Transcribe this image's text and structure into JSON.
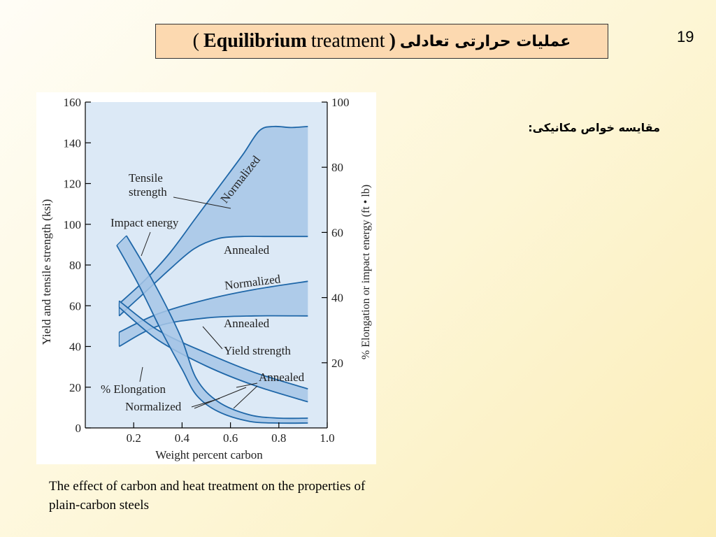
{
  "slide": {
    "title_open": "(",
    "title_bold": "Equilibrium",
    "title_rest": "treatment",
    "title_close": ")",
    "title_fa": "عملیات حرارتی تعادلی",
    "page_number": "19",
    "note_fa": "مقایسه خواص مکانیکی:",
    "caption": "The effect of carbon and heat treatment on the properties of plain-carbon steels"
  },
  "chart_data": {
    "type": "area",
    "xlabel": "Weight percent carbon",
    "ylabel_left": "Yield and tensile strength (ksi)",
    "ylabel_right": "% Elongation or impact energy (ft • lb)",
    "xlim": [
      0,
      1.0
    ],
    "ylim_left": [
      0,
      160
    ],
    "ylim_right": [
      0,
      100
    ],
    "xticks": [
      "0.2",
      "0.4",
      "0.6",
      "0.8",
      "1.0"
    ],
    "yticks_left": [
      "0",
      "20",
      "40",
      "60",
      "80",
      "100",
      "120",
      "140",
      "160"
    ],
    "yticks_right": [
      "20",
      "40",
      "60",
      "80",
      "100"
    ],
    "bands": [
      {
        "name": "Tensile strength",
        "upper": {
          "label": "Normalized",
          "x": [
            0.14,
            0.25,
            0.35,
            0.45,
            0.55,
            0.65,
            0.72,
            0.78,
            0.85,
            0.92
          ],
          "y": [
            61,
            73,
            86,
            102,
            118,
            134,
            146,
            148,
            147.5,
            148
          ]
        },
        "lower": {
          "label": "Annealed",
          "x": [
            0.14,
            0.25,
            0.35,
            0.45,
            0.55,
            0.65,
            0.75,
            0.85,
            0.92
          ],
          "y": [
            55,
            67,
            78,
            88,
            93,
            94,
            94,
            94,
            94
          ]
        }
      },
      {
        "name": "Yield strength",
        "upper": {
          "label": "Normalized",
          "x": [
            0.14,
            0.3,
            0.5,
            0.7,
            0.92
          ],
          "y": [
            47,
            56,
            63,
            68,
            72
          ]
        },
        "lower": {
          "label": "Annealed",
          "x": [
            0.14,
            0.3,
            0.5,
            0.7,
            0.92
          ],
          "y": [
            40,
            50,
            54,
            55,
            55
          ]
        }
      },
      {
        "name": "% Elongation",
        "upper": {
          "label": "Annealed",
          "x": [
            0.14,
            0.3,
            0.5,
            0.7,
            0.92
          ],
          "y": [
            39,
            30,
            23,
            17,
            12
          ]
        },
        "lower": {
          "label": "Normalized",
          "x": [
            0.14,
            0.3,
            0.5,
            0.7,
            0.92
          ],
          "y": [
            37,
            27,
            19,
            13,
            8
          ]
        }
      },
      {
        "name": "Impact energy",
        "upper": {
          "label": "",
          "x": [
            0.17,
            0.25,
            0.33,
            0.4,
            0.46,
            0.55,
            0.68,
            0.8,
            0.92
          ],
          "y": [
            59,
            49,
            38,
            27,
            15,
            8,
            4,
            3,
            3
          ]
        },
        "lower": {
          "label": "",
          "x": [
            0.13,
            0.22,
            0.32,
            0.4,
            0.46,
            0.55,
            0.68,
            0.8,
            0.92
          ],
          "y": [
            56,
            44,
            29,
            18,
            10,
            5,
            2,
            1.5,
            1.5
          ]
        }
      }
    ],
    "annotations": [
      {
        "text": "Tensile strength",
        "lines": [
          "Tensile",
          "strength"
        ]
      },
      {
        "text": "Impact energy",
        "lines": [
          "Impact energy"
        ]
      },
      {
        "text": "Normalized",
        "lines": [
          "Normalized"
        ]
      },
      {
        "text": "Annealed",
        "lines": [
          "Annealed"
        ]
      },
      {
        "text": "Normalized",
        "lines": [
          "Normalized"
        ]
      },
      {
        "text": "Annealed",
        "lines": [
          "Annealed"
        ]
      },
      {
        "text": "Yield strength",
        "lines": [
          "Yield strength"
        ]
      },
      {
        "text": "Annealed",
        "lines": [
          "Annealed"
        ]
      },
      {
        "text": "% Elongation",
        "lines": [
          "% Elongation"
        ]
      },
      {
        "text": "Normalized",
        "lines": [
          "Normalized"
        ]
      }
    ],
    "colors": {
      "band_fill": "#a6c6e6",
      "band_line": "#1f67a8",
      "plot_bg": "#dce9f6"
    }
  }
}
